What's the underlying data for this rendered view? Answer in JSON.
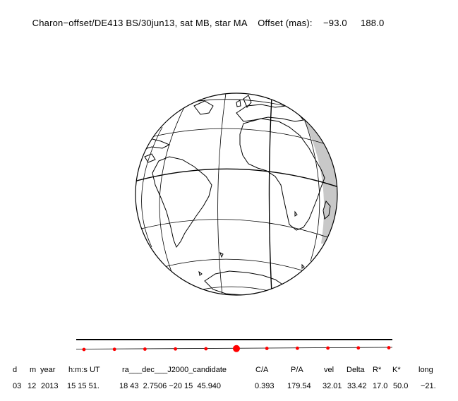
{
  "title": {
    "event": "Charon−offset/DE413 BS/30jun13, sat MB, star MA",
    "offset_label": "Offset (mas):",
    "offset_x": "−93.0",
    "offset_y": "188.0"
  },
  "colors": {
    "line": "#000000",
    "shadow": "#c8c8c8",
    "track_dot": "#ff0000"
  },
  "track": {
    "dot_count": 11,
    "highlight_index": 5
  },
  "table": {
    "headers": [
      "d",
      "m",
      "year",
      "h:m:s UT",
      "ra___dec___J2000_candidate",
      "C/A",
      "P/A",
      "vel",
      "Delta",
      "R*",
      "K*",
      "long"
    ],
    "values": [
      "03",
      "12",
      "2013",
      "15 15 51.",
      "18 43  2.7506 −20 15  45.940",
      "0.393",
      "179.54",
      "32.01",
      "33.42",
      "17.0",
      "50.0",
      "−21."
    ]
  }
}
